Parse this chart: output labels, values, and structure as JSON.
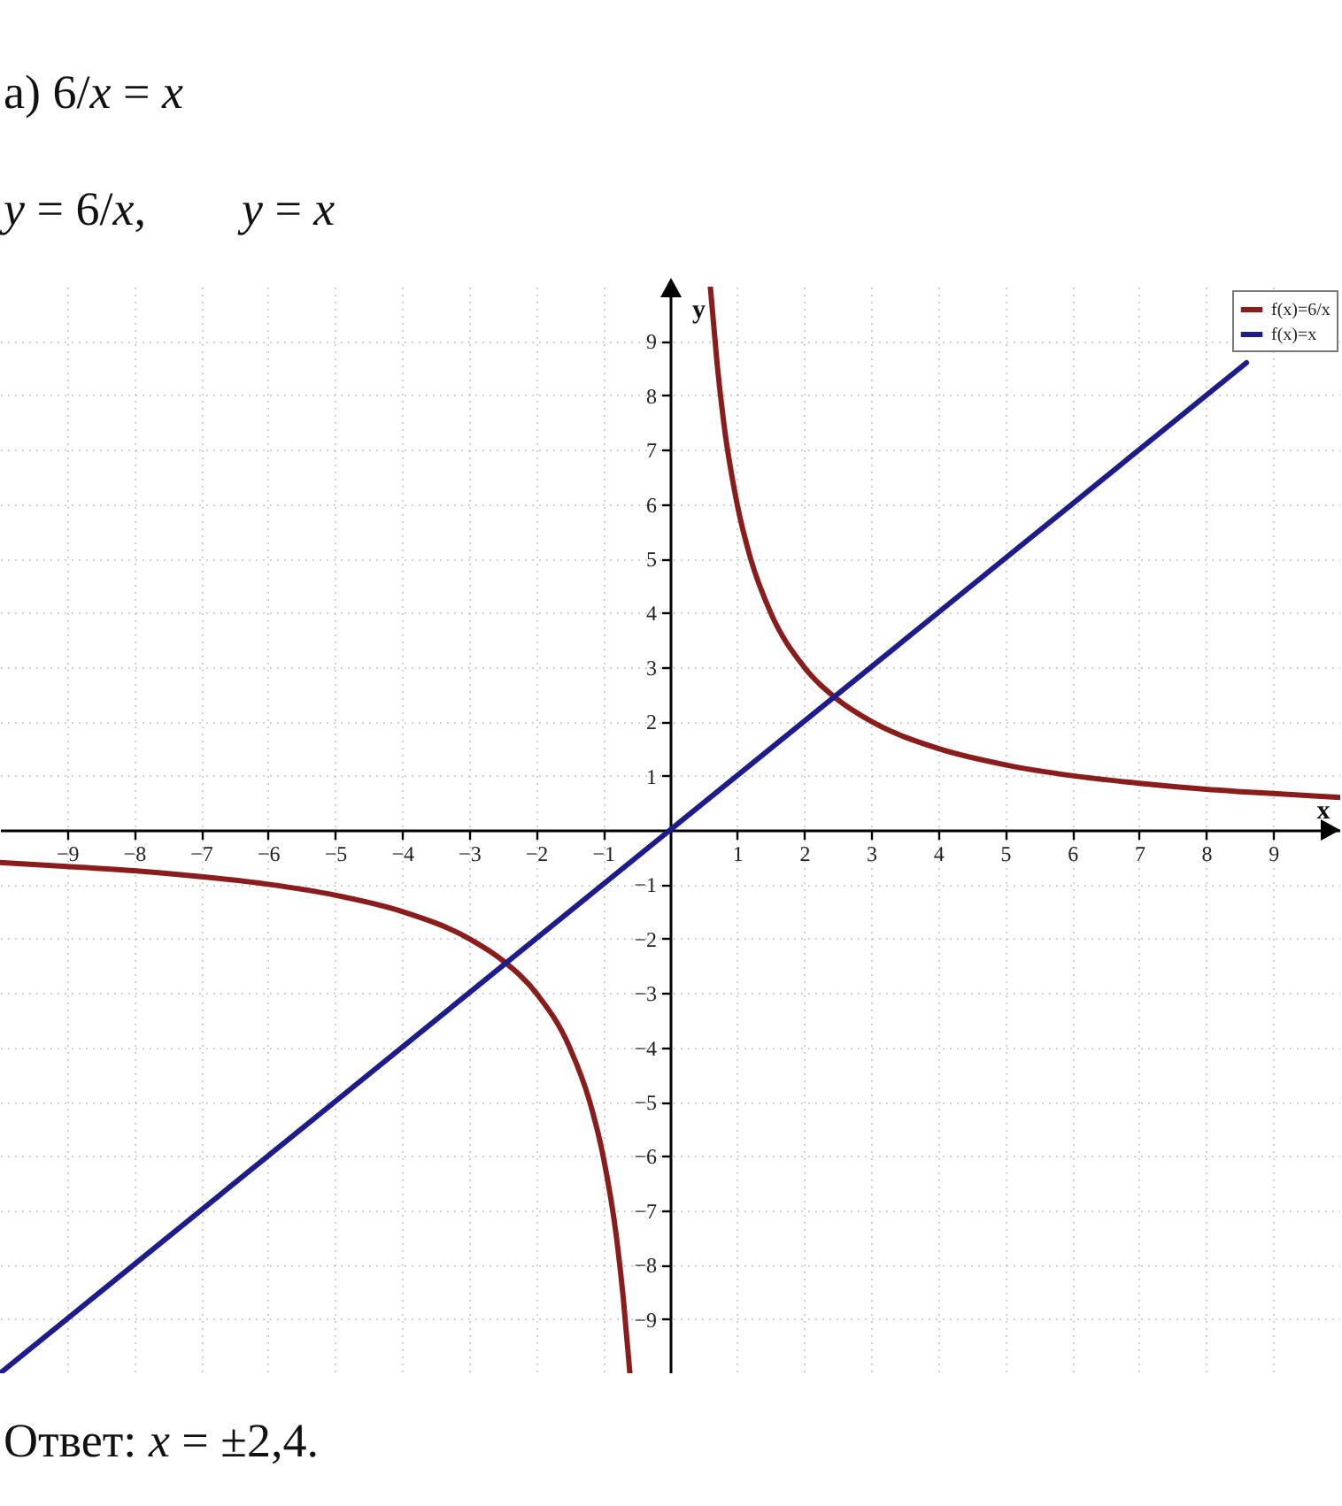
{
  "chart_data": {
    "type": "line",
    "title": "а) 6/x = x",
    "subtitle": "y = 6/x,        y = x",
    "annotations": [
      "Ответ: x = ±2,4."
    ],
    "xlabel": "x",
    "ylabel": "y",
    "xlim": [
      -10,
      10
    ],
    "ylim": [
      -10,
      10
    ],
    "xticks": [
      -9,
      -8,
      -7,
      -6,
      -5,
      -4,
      -3,
      -2,
      -1,
      1,
      2,
      3,
      4,
      5,
      6,
      7,
      8,
      9
    ],
    "yticks": [
      -9,
      -8,
      -7,
      -6,
      -5,
      -4,
      -3,
      -2,
      -1,
      1,
      2,
      3,
      4,
      5,
      6,
      7,
      8,
      9
    ],
    "grid": true,
    "legend": "top right",
    "series": [
      {
        "name": "f(x)=6/x",
        "color": "#8b1c1c",
        "x": [
          -10,
          -9,
          -8,
          -7,
          -6,
          -5,
          -4,
          -3,
          -2.5,
          -2,
          -1.5,
          -1.2,
          -1,
          -0.8,
          -0.7,
          -0.6,
          0,
          0.6,
          0.7,
          0.8,
          1,
          1.2,
          1.5,
          2,
          2.5,
          3,
          4,
          5,
          6,
          7,
          8,
          9,
          10
        ],
        "values": [
          -0.6,
          -0.67,
          -0.75,
          -0.86,
          -1,
          -1.2,
          -1.5,
          -2,
          -2.4,
          -3,
          -4,
          -5,
          -6,
          -7.5,
          -8.6,
          -10,
          null,
          10,
          8.6,
          7.5,
          6,
          5,
          4,
          3,
          2.4,
          2,
          1.5,
          1.2,
          1,
          0.86,
          0.75,
          0.67,
          0.6
        ]
      },
      {
        "name": "f(x)=x",
        "color": "#1c1c8c",
        "x": [
          -10,
          0,
          8.6
        ],
        "values": [
          -10,
          0,
          8.6
        ]
      }
    ]
  }
}
